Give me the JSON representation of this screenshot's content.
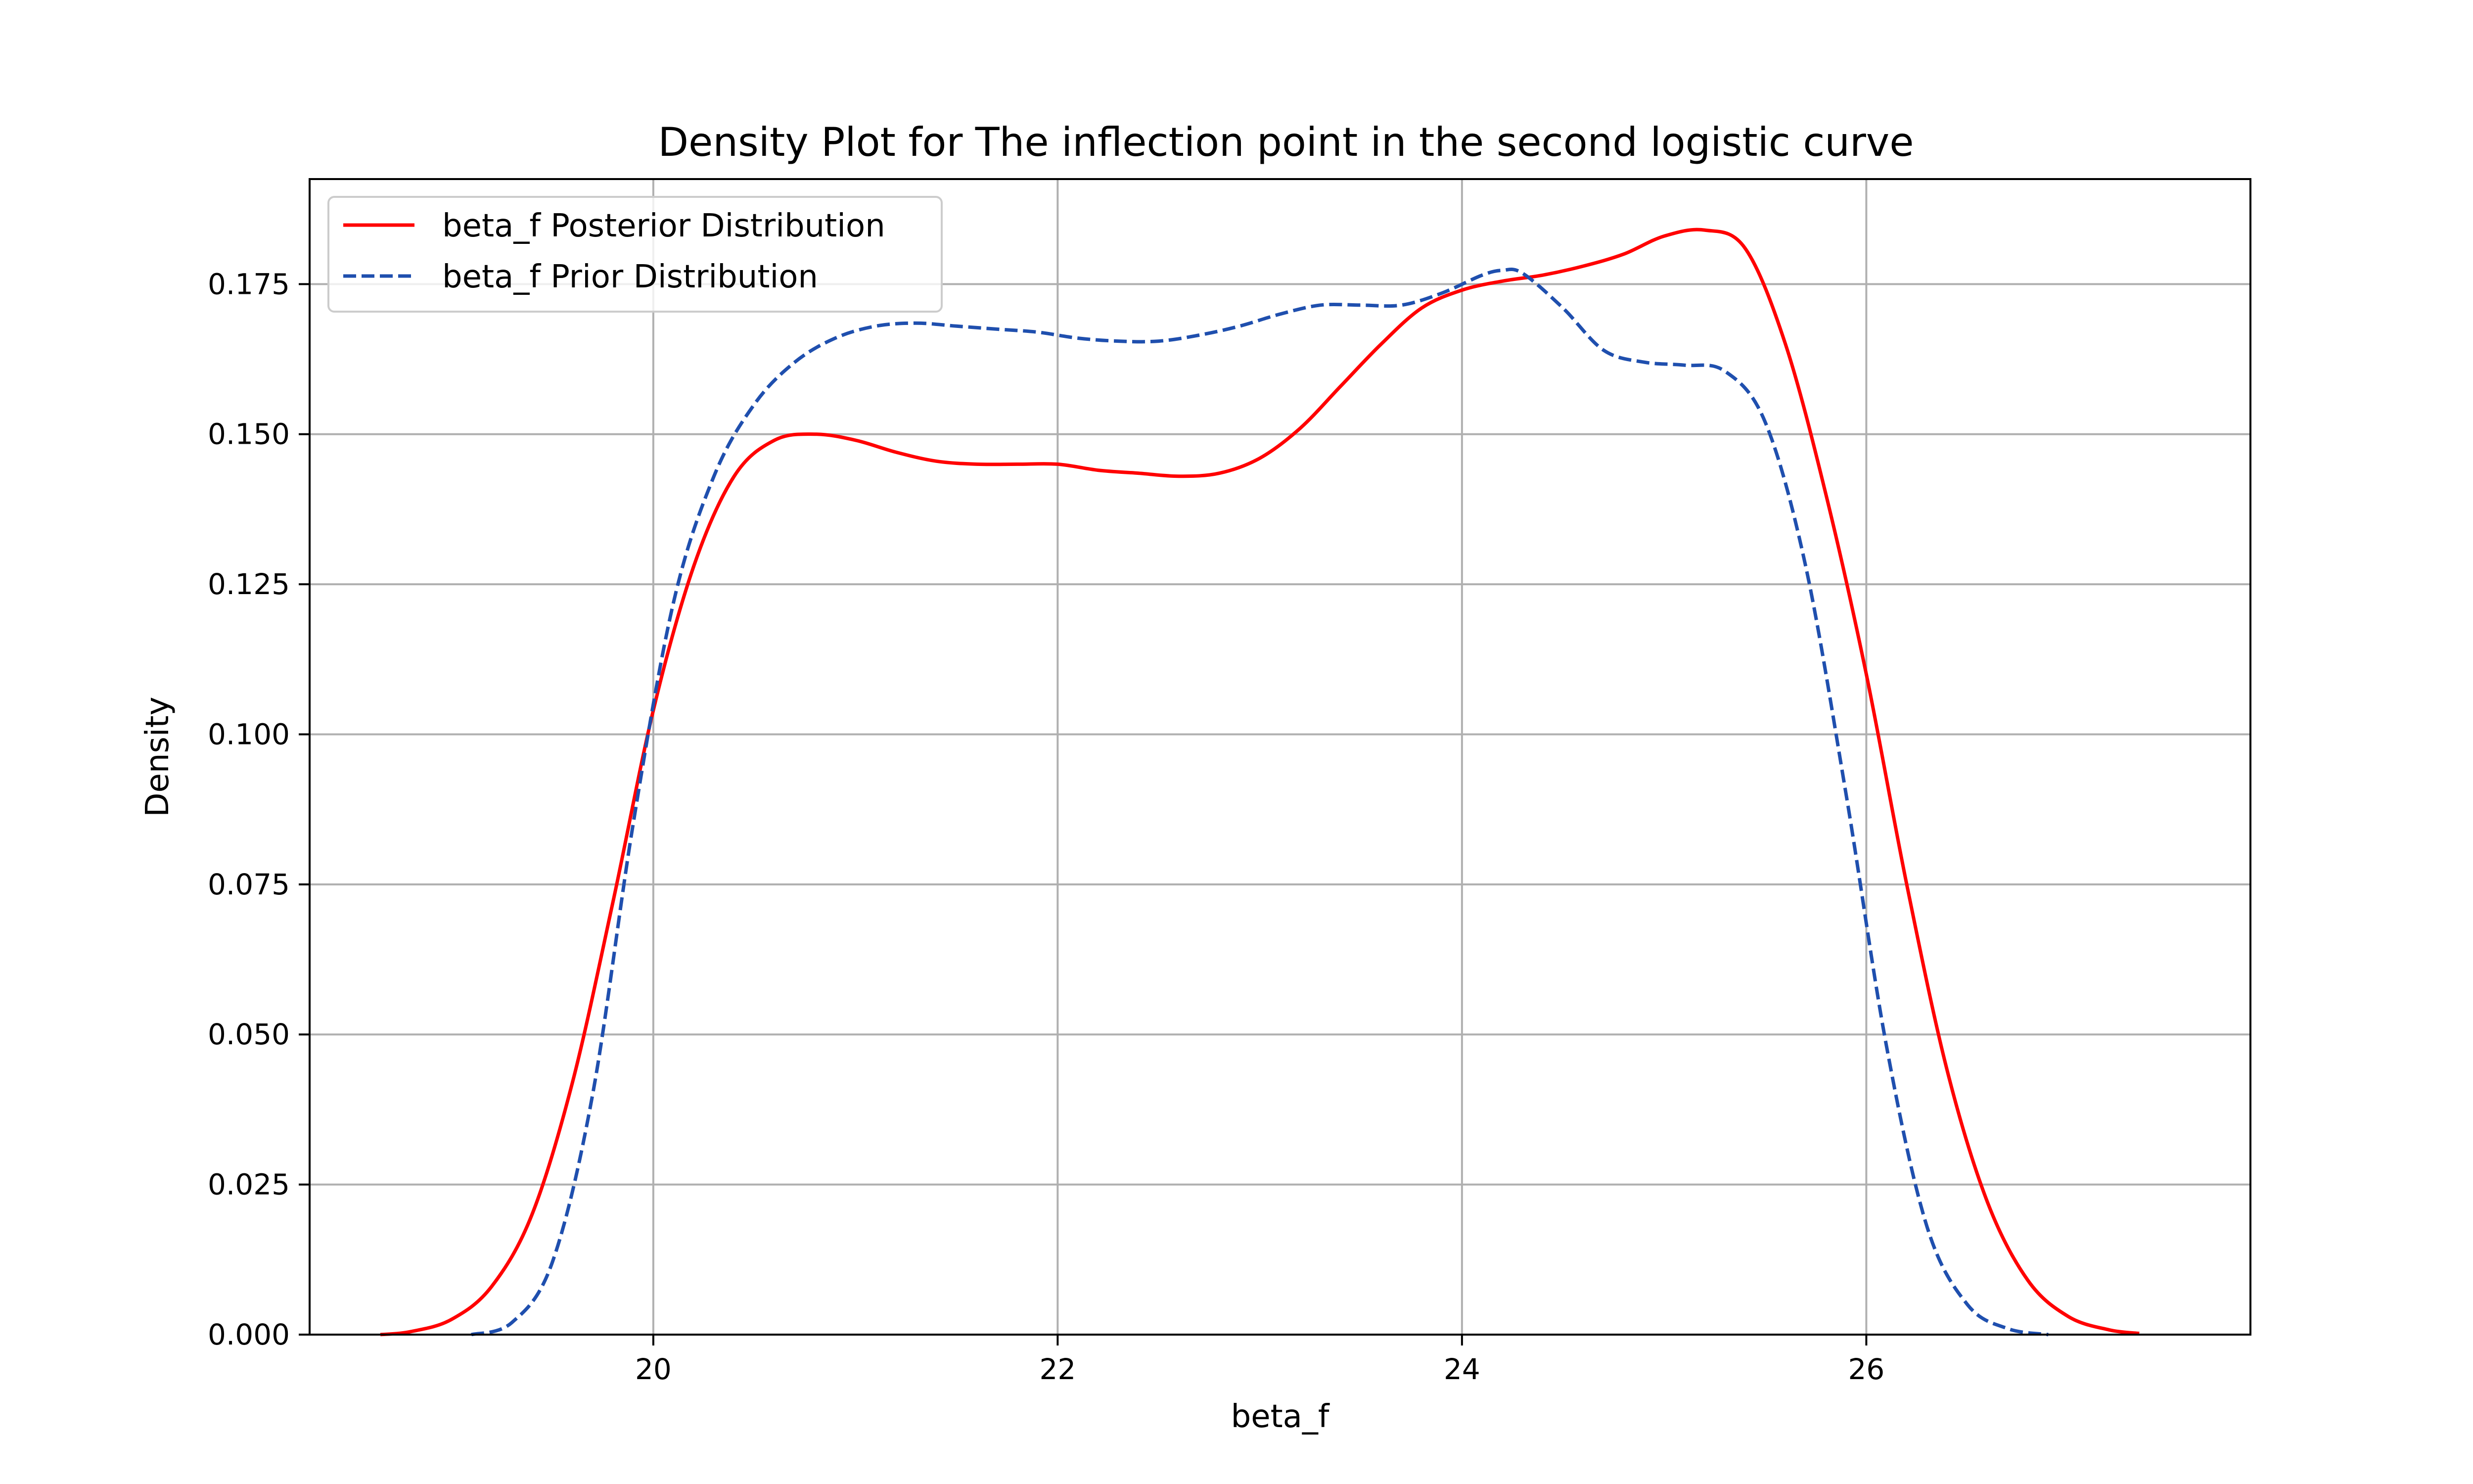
{
  "chart_data": {
    "type": "line",
    "title": "Density Plot for The inflection point in the second logistic curve",
    "xlabel": "beta_f",
    "ylabel": "Density",
    "xlim": [
      18.3,
      27.9
    ],
    "ylim": [
      0.0,
      0.1925
    ],
    "xticks": [
      20,
      22,
      24,
      26
    ],
    "yticks": [
      0.0,
      0.025,
      0.05,
      0.075,
      0.1,
      0.125,
      0.15,
      0.175
    ],
    "xtick_labels": [
      "20",
      "22",
      "24",
      "26"
    ],
    "ytick_labels": [
      "0.000",
      "0.025",
      "0.050",
      "0.075",
      "0.100",
      "0.125",
      "0.150",
      "0.175"
    ],
    "grid": true,
    "legend_position": "top-left",
    "series": [
      {
        "name": "beta_f Posterior Distribution",
        "color": "#ff0000",
        "dash": "solid",
        "x": [
          18.65,
          18.8,
          19.0,
          19.2,
          19.4,
          19.6,
          19.8,
          20.0,
          20.2,
          20.4,
          20.6,
          20.8,
          21.0,
          21.2,
          21.4,
          21.6,
          21.8,
          22.0,
          22.2,
          22.4,
          22.6,
          22.8,
          23.0,
          23.2,
          23.4,
          23.6,
          23.8,
          24.0,
          24.2,
          24.4,
          24.6,
          24.8,
          25.0,
          25.2,
          25.4,
          25.6,
          25.8,
          26.0,
          26.2,
          26.4,
          26.6,
          26.8,
          27.0,
          27.2,
          27.35
        ],
        "y": [
          0.0,
          0.0005,
          0.0025,
          0.008,
          0.02,
          0.042,
          0.072,
          0.104,
          0.128,
          0.143,
          0.149,
          0.15,
          0.149,
          0.147,
          0.1455,
          0.145,
          0.145,
          0.145,
          0.144,
          0.1435,
          0.143,
          0.1435,
          0.146,
          0.151,
          0.158,
          0.165,
          0.171,
          0.174,
          0.1755,
          0.1765,
          0.178,
          0.18,
          0.183,
          0.184,
          0.181,
          0.165,
          0.14,
          0.11,
          0.075,
          0.044,
          0.022,
          0.009,
          0.003,
          0.0008,
          0.0002
        ]
      },
      {
        "name": "beta_f Prior Distribution",
        "color": "#1f4fae",
        "dash": "dashed",
        "x": [
          19.1,
          19.3,
          19.5,
          19.7,
          19.9,
          20.1,
          20.3,
          20.5,
          20.7,
          20.9,
          21.1,
          21.3,
          21.5,
          21.7,
          21.9,
          22.1,
          22.3,
          22.5,
          22.7,
          22.9,
          23.1,
          23.3,
          23.5,
          23.7,
          23.9,
          24.1,
          24.2,
          24.3,
          24.5,
          24.7,
          24.9,
          25.1,
          25.3,
          25.5,
          25.7,
          25.9,
          26.1,
          26.3,
          26.5,
          26.7,
          26.9
        ],
        "y": [
          0.0,
          0.002,
          0.012,
          0.04,
          0.085,
          0.122,
          0.143,
          0.155,
          0.162,
          0.166,
          0.168,
          0.1685,
          0.168,
          0.1675,
          0.167,
          0.166,
          0.1655,
          0.1655,
          0.1665,
          0.168,
          0.17,
          0.1715,
          0.1715,
          0.1715,
          0.1735,
          0.1765,
          0.1773,
          0.1768,
          0.171,
          0.164,
          0.162,
          0.1615,
          0.1605,
          0.152,
          0.128,
          0.09,
          0.048,
          0.018,
          0.005,
          0.001,
          0.0
        ]
      }
    ]
  }
}
